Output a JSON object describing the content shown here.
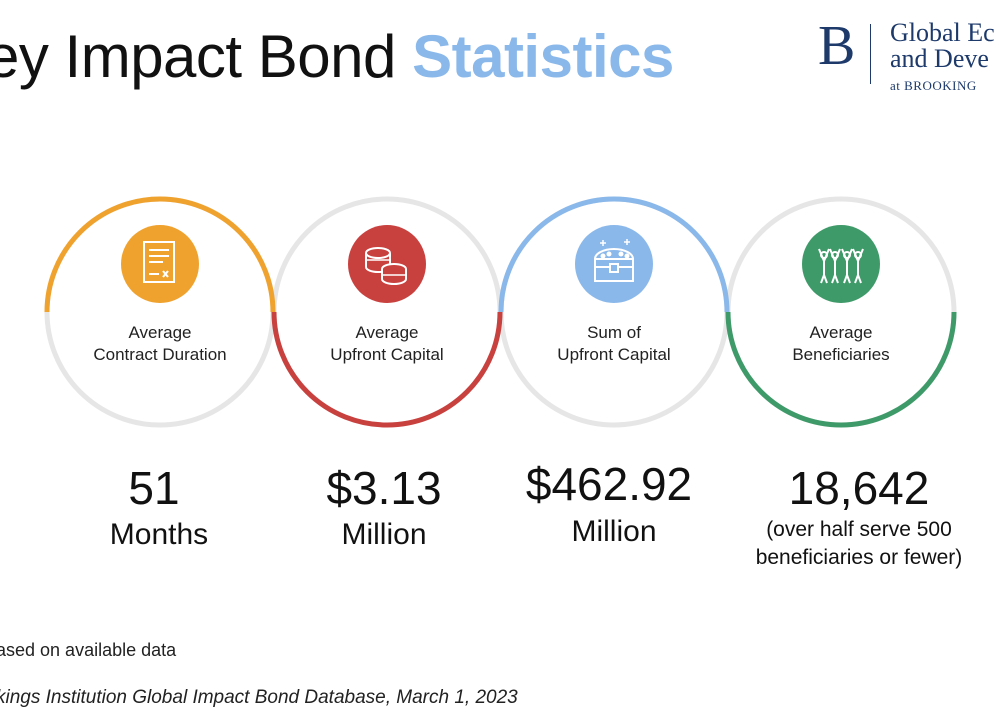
{
  "header": {
    "title_main": "ey Impact Bond ",
    "title_highlight": "Statistics"
  },
  "logo": {
    "letter": "B",
    "line1": "Global Ec",
    "line2": "and Deve",
    "line3": "at BROOKING"
  },
  "colors": {
    "orange": "#f0a22e",
    "red": "#c8413f",
    "blue": "#8ab8ea",
    "green": "#3f9a69",
    "ring_gray": "#e6e6e6"
  },
  "stats": [
    {
      "label_line1": "Average",
      "label_line2": "Contract Duration",
      "value": "51",
      "unit": "Months",
      "icon": "contract-document-icon"
    },
    {
      "label_line1": "Average",
      "label_line2": "Upfront Capital",
      "value": "$3.13",
      "unit": "Million",
      "icon": "coin-stack-icon"
    },
    {
      "label_line1": "Sum of",
      "label_line2": "Upfront Capital",
      "value": "$462.92",
      "unit": "Million",
      "icon": "treasure-chest-icon"
    },
    {
      "label_line1": "Average",
      "label_line2": "Beneficiaries",
      "value": "18,642",
      "note_line1": "(over half serve 500",
      "note_line2": "beneficiaries or fewer)",
      "icon": "people-group-icon"
    }
  ],
  "footer": {
    "note": "ased on available data",
    "source": "kings Institution Global Impact Bond Database, March 1, 2023"
  }
}
